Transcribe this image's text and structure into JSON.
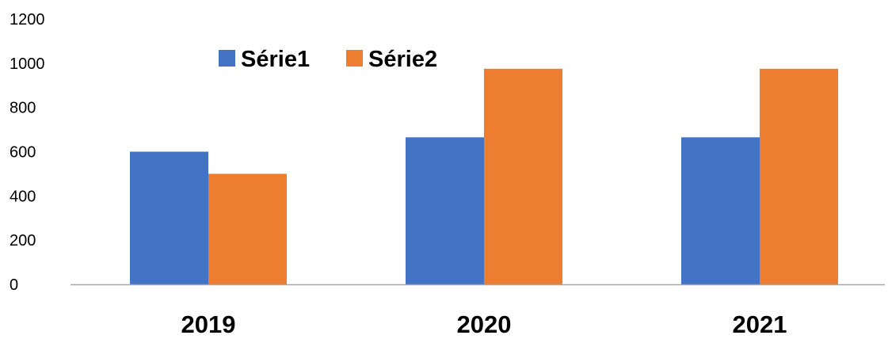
{
  "chart_data": {
    "type": "bar",
    "categories": [
      "2019",
      "2020",
      "2021"
    ],
    "series": [
      {
        "name": "Série1",
        "values": [
          600,
          665,
          665
        ],
        "color": "#4472C4"
      },
      {
        "name": "Série2",
        "values": [
          500,
          975,
          975
        ],
        "color": "#ED7D31"
      }
    ],
    "ylim": [
      0,
      1200
    ],
    "yticks": [
      0,
      200,
      400,
      600,
      800,
      1000,
      1200
    ],
    "grid": false,
    "legend_position": "top-left",
    "axis_color": "#A6A6A6"
  }
}
